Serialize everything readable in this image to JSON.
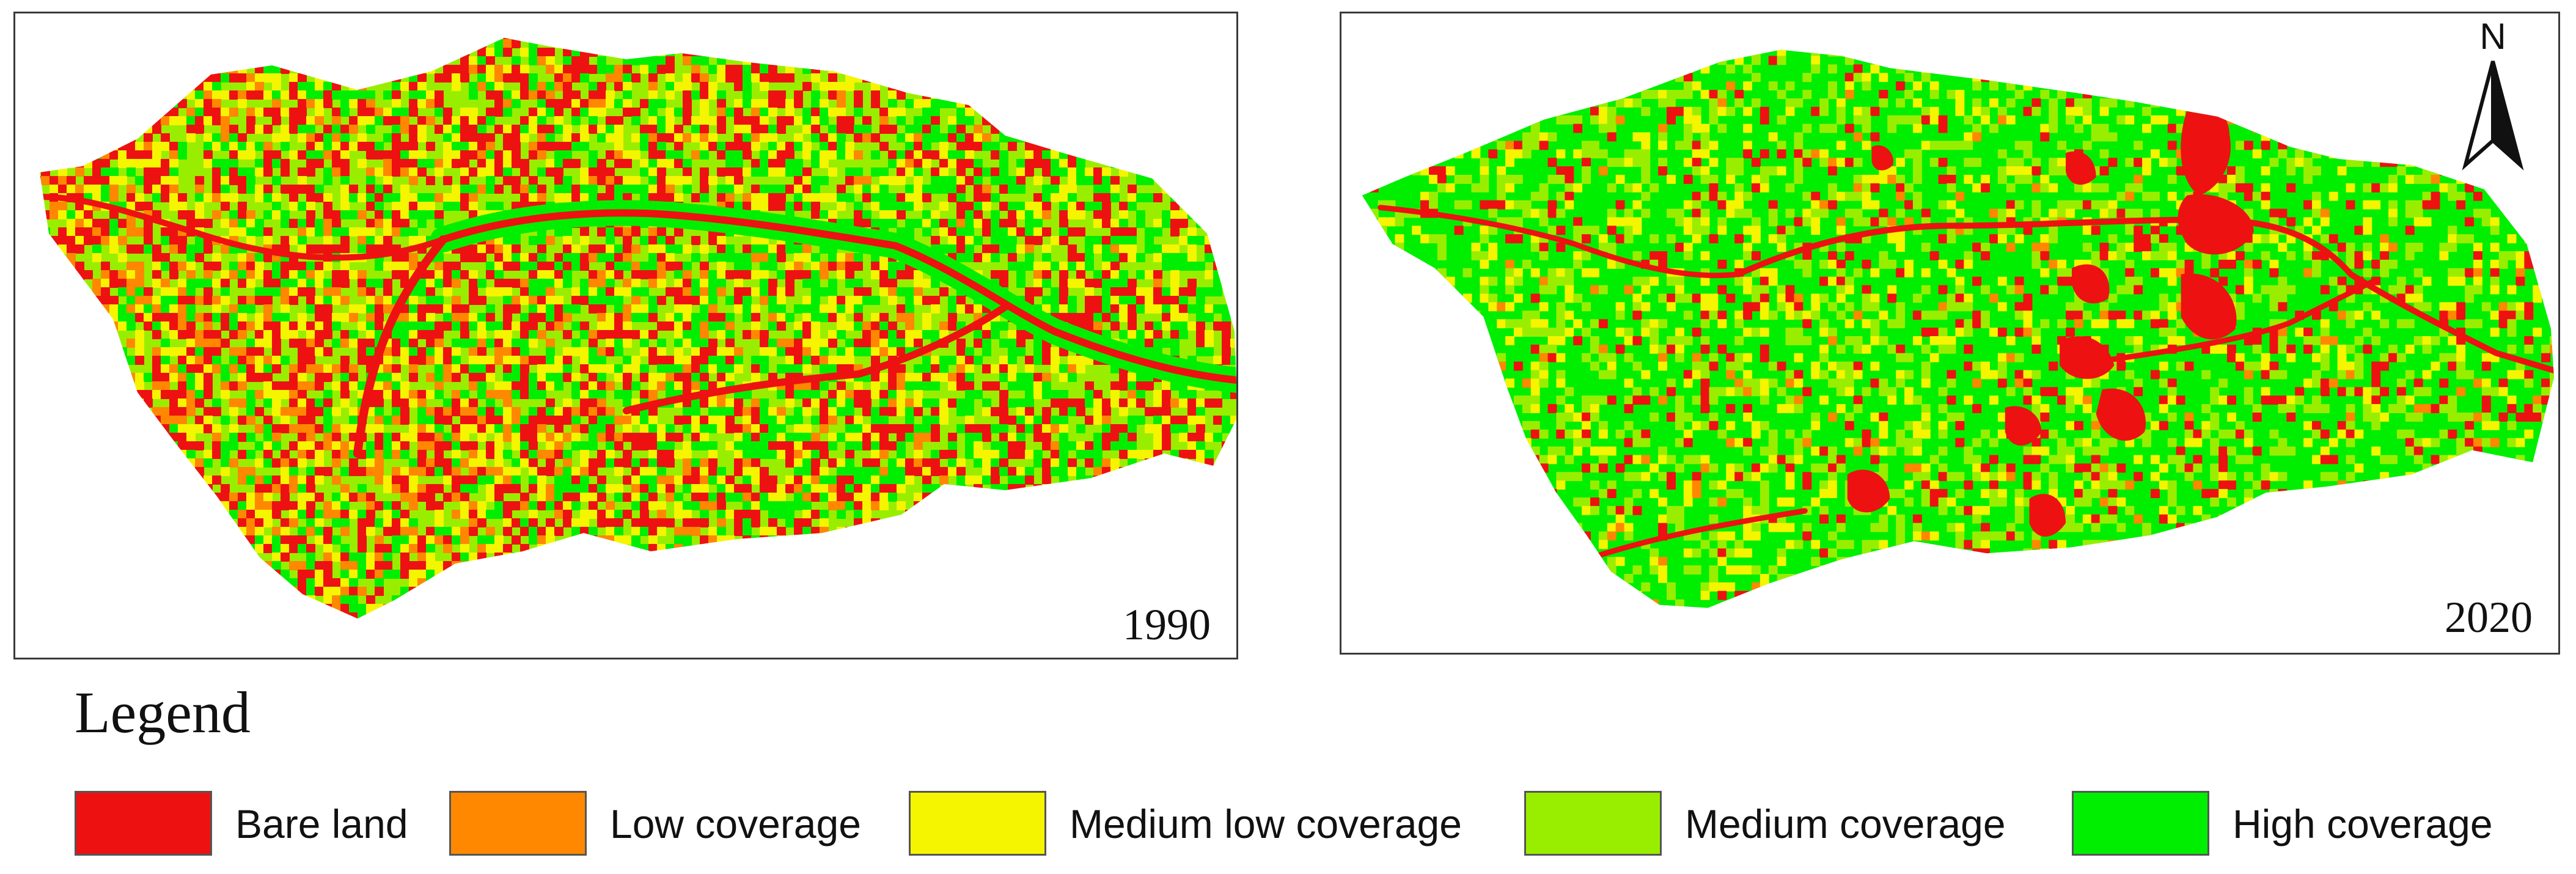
{
  "maps": [
    {
      "year": "1990"
    },
    {
      "year": "2020"
    }
  ],
  "north_arrow": {
    "label": "N"
  },
  "legend": {
    "title": "Legend",
    "items": [
      {
        "label": "Bare land",
        "color": "#ee1111"
      },
      {
        "label": "Low coverage",
        "color": "#ff8800"
      },
      {
        "label": "Medium low coverage",
        "color": "#f5f500"
      },
      {
        "label": "Medium coverage",
        "color": "#99ee00"
      },
      {
        "label": "High coverage",
        "color": "#00ee00"
      }
    ]
  }
}
